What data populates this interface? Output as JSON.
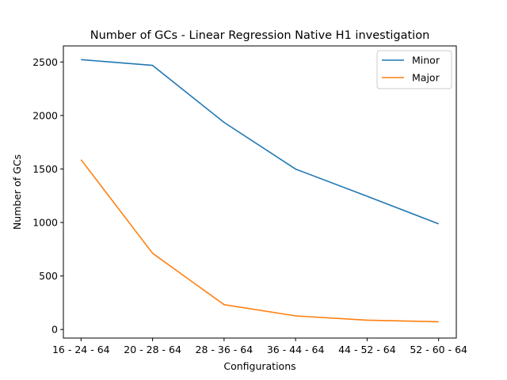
{
  "chart_data": {
    "type": "line",
    "title": "Number of GCs - Linear Regression Native H1 investigation",
    "xlabel": "Configurations",
    "ylabel": "Number of GCs",
    "categories": [
      "16 - 24 - 64",
      "20 - 28 - 64",
      "28 - 36 - 64",
      "36 - 44 - 64",
      "44 - 52 - 64",
      "52 - 60 - 64"
    ],
    "series": [
      {
        "name": "Minor",
        "color": "#1f77b4",
        "values": [
          2522,
          2468,
          1935,
          1499,
          1245,
          987
        ]
      },
      {
        "name": "Major",
        "color": "#ff7f0e",
        "values": [
          1587,
          712,
          232,
          127,
          87,
          72
        ]
      }
    ],
    "ylim": [
      -80,
      2650
    ],
    "yticks": [
      0,
      500,
      1000,
      1500,
      2000,
      2500
    ],
    "legend": "top-right",
    "grid": false
  }
}
